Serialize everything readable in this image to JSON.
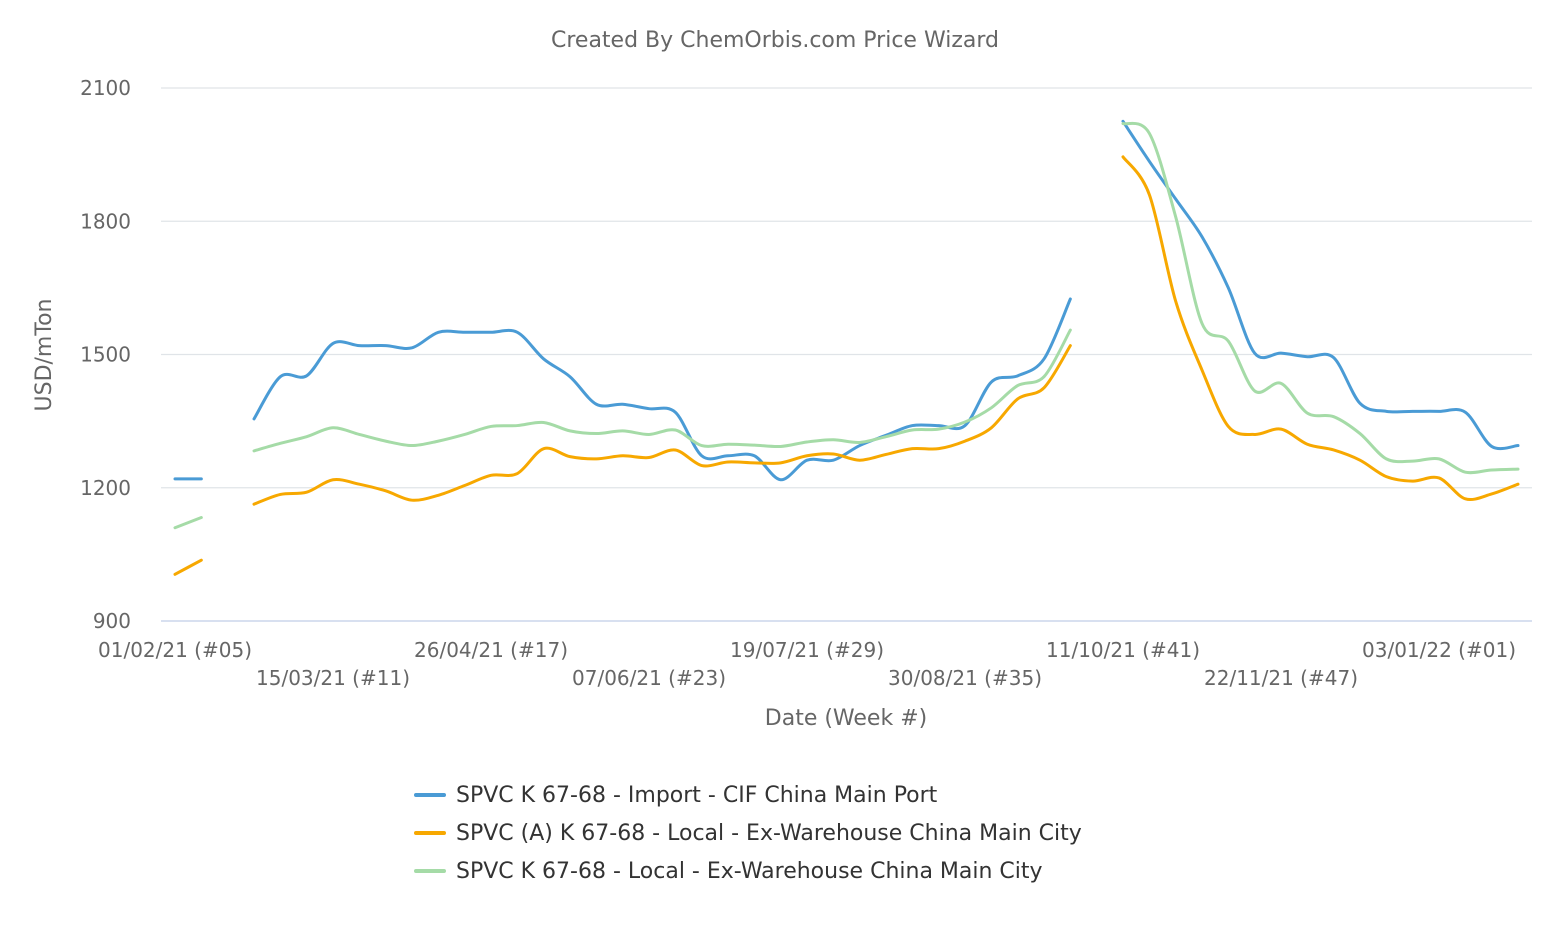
{
  "chart_data": {
    "type": "line",
    "title": "Created By ChemOrbis.com Price Wizard",
    "xlabel": "Date (Week #)",
    "ylabel": "USD/mTon",
    "ylim": [
      900,
      2100
    ],
    "yticks": [
      900,
      1200,
      1500,
      1800,
      2100
    ],
    "xtick_labels": [
      {
        "week_index": 0,
        "label": "01/02/21 (#05)"
      },
      {
        "week_index": 6,
        "label": "15/03/21 (#11)"
      },
      {
        "week_index": 12,
        "label": "26/04/21 (#17)"
      },
      {
        "week_index": 18,
        "label": "07/06/21 (#23)"
      },
      {
        "week_index": 24,
        "label": "19/07/21 (#29)"
      },
      {
        "week_index": 30,
        "label": "30/08/21 (#35)"
      },
      {
        "week_index": 36,
        "label": "11/10/21 (#41)"
      },
      {
        "week_index": 42,
        "label": "22/11/21 (#47)"
      },
      {
        "week_index": 48,
        "label": "03/01/22 (#01)"
      }
    ],
    "x_count": 52,
    "grid": true,
    "legend_position": "bottom",
    "series": [
      {
        "name": "SPVC K 67-68 - Import - CIF China Main Port",
        "color": "#4a9bd5",
        "values": [
          1220,
          1220,
          null,
          1355,
          1450,
          1452,
          1525,
          1520,
          1520,
          1515,
          1550,
          1550,
          1550,
          1550,
          1490,
          1450,
          1388,
          1388,
          1378,
          1370,
          1272,
          1272,
          1272,
          1218,
          1262,
          1262,
          1295,
          1318,
          1340,
          1340,
          1340,
          1438,
          1452,
          1490,
          1625,
          null,
          2025,
          1935,
          1850,
          1765,
          1650,
          1503,
          1503,
          1495,
          1493,
          1390,
          1372,
          1372,
          1372,
          1370,
          1293,
          1295
        ]
      },
      {
        "name": "SPVC (A) K 67-68 - Local - Ex-Warehouse China Main City",
        "color": "#f7a800",
        "values": [
          1005,
          1037,
          null,
          1163,
          1185,
          1190,
          1218,
          1208,
          1193,
          1172,
          1183,
          1205,
          1228,
          1232,
          1288,
          1270,
          1265,
          1272,
          1268,
          1285,
          1250,
          1258,
          1256,
          1256,
          1272,
          1276,
          1262,
          1275,
          1288,
          1288,
          1305,
          1335,
          1400,
          1425,
          1520,
          null,
          1945,
          1860,
          1620,
          1465,
          1338,
          1320,
          1332,
          1298,
          1285,
          1262,
          1225,
          1215,
          1222,
          1175,
          1186,
          1208
        ]
      },
      {
        "name": "SPVC K 67-68 - Local - Ex-Warehouse China Main City",
        "color": "#a5dba7",
        "values": [
          1110,
          1133,
          null,
          1283,
          1300,
          1315,
          1335,
          1320,
          1305,
          1295,
          1305,
          1320,
          1338,
          1340,
          1347,
          1328,
          1322,
          1328,
          1320,
          1330,
          1295,
          1298,
          1296,
          1293,
          1303,
          1308,
          1302,
          1315,
          1330,
          1332,
          1348,
          1380,
          1430,
          1450,
          1555,
          null,
          2020,
          1998,
          1810,
          1570,
          1530,
          1418,
          1435,
          1368,
          1360,
          1322,
          1265,
          1260,
          1265,
          1235,
          1240,
          1242
        ]
      }
    ]
  }
}
